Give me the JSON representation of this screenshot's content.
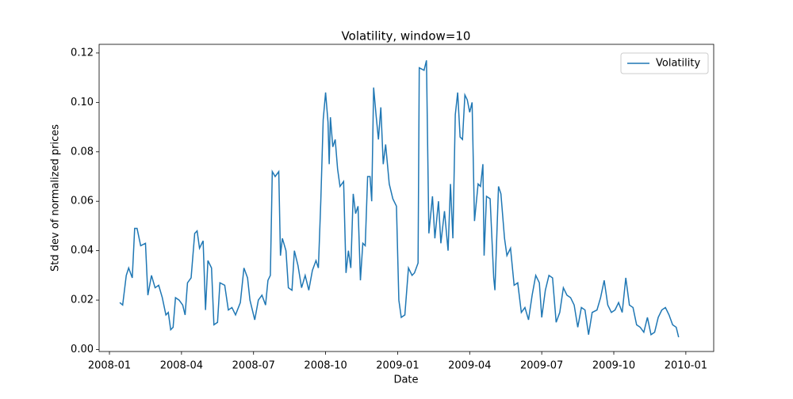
{
  "chart_data": {
    "type": "line",
    "title": "Volatility, window=10",
    "x_label": "Date",
    "y_label": "Std dev of normalized prices",
    "x": [
      0.43,
      0.55,
      0.7,
      0.8,
      0.95,
      1.05,
      1.15,
      1.3,
      1.5,
      1.6,
      1.75,
      1.9,
      2.05,
      2.2,
      2.35,
      2.45,
      2.55,
      2.65,
      2.75,
      2.9,
      3.05,
      3.15,
      3.25,
      3.4,
      3.55,
      3.65,
      3.75,
      3.9,
      4.0,
      4.1,
      4.25,
      4.35,
      4.5,
      4.6,
      4.8,
      4.95,
      5.1,
      5.25,
      5.45,
      5.6,
      5.75,
      5.85,
      6.05,
      6.2,
      6.35,
      6.5,
      6.6,
      6.7,
      6.78,
      6.9,
      7.05,
      7.12,
      7.2,
      7.35,
      7.45,
      7.6,
      7.7,
      7.85,
      8.0,
      8.15,
      8.3,
      8.45,
      8.6,
      8.7,
      8.8,
      8.9,
      9.0,
      9.1,
      9.15,
      9.2,
      9.3,
      9.4,
      9.5,
      9.6,
      9.75,
      9.85,
      9.95,
      10.05,
      10.15,
      10.25,
      10.35,
      10.45,
      10.55,
      10.65,
      10.75,
      10.85,
      10.92,
      11.0,
      11.1,
      11.2,
      11.3,
      11.4,
      11.5,
      11.65,
      11.8,
      11.95,
      12.05,
      12.15,
      12.3,
      12.45,
      12.6,
      12.7,
      12.85,
      12.9,
      13.1,
      13.2,
      13.3,
      13.45,
      13.55,
      13.7,
      13.8,
      13.95,
      14.1,
      14.2,
      14.3,
      14.4,
      14.5,
      14.6,
      14.7,
      14.8,
      14.9,
      15.0,
      15.1,
      15.2,
      15.35,
      15.45,
      15.55,
      15.6,
      15.7,
      15.85,
      16.0,
      16.05,
      16.2,
      16.3,
      16.45,
      16.55,
      16.7,
      16.85,
      17.0,
      17.15,
      17.3,
      17.45,
      17.6,
      17.75,
      17.9,
      18.0,
      18.15,
      18.3,
      18.45,
      18.6,
      18.75,
      18.9,
      19.05,
      19.2,
      19.35,
      19.5,
      19.65,
      19.8,
      19.95,
      20.1,
      20.3,
      20.45,
      20.6,
      20.75,
      20.9,
      21.05,
      21.2,
      21.35,
      21.5,
      21.65,
      21.8,
      21.95,
      22.1,
      22.25,
      22.4,
      22.55,
      22.7,
      22.85,
      23.0,
      23.15,
      23.3,
      23.45,
      23.6,
      23.7
    ],
    "series": [
      {
        "name": "Volatility",
        "color": "#1f77b4",
        "values": [
          0.019,
          0.018,
          0.03,
          0.033,
          0.029,
          0.049,
          0.049,
          0.042,
          0.043,
          0.022,
          0.03,
          0.025,
          0.026,
          0.021,
          0.014,
          0.015,
          0.008,
          0.009,
          0.021,
          0.02,
          0.018,
          0.014,
          0.027,
          0.029,
          0.047,
          0.048,
          0.041,
          0.044,
          0.016,
          0.036,
          0.033,
          0.01,
          0.011,
          0.027,
          0.026,
          0.016,
          0.017,
          0.014,
          0.019,
          0.033,
          0.029,
          0.02,
          0.012,
          0.02,
          0.022,
          0.018,
          0.028,
          0.03,
          0.072,
          0.07,
          0.072,
          0.038,
          0.045,
          0.04,
          0.025,
          0.024,
          0.04,
          0.034,
          0.025,
          0.03,
          0.024,
          0.032,
          0.036,
          0.033,
          0.06,
          0.093,
          0.104,
          0.092,
          0.075,
          0.094,
          0.082,
          0.085,
          0.073,
          0.066,
          0.068,
          0.031,
          0.04,
          0.033,
          0.063,
          0.055,
          0.058,
          0.028,
          0.043,
          0.042,
          0.07,
          0.07,
          0.06,
          0.106,
          0.095,
          0.085,
          0.098,
          0.075,
          0.083,
          0.067,
          0.061,
          0.058,
          0.02,
          0.013,
          0.014,
          0.033,
          0.03,
          0.031,
          0.035,
          0.114,
          0.113,
          0.117,
          0.047,
          0.062,
          0.045,
          0.06,
          0.043,
          0.056,
          0.04,
          0.067,
          0.045,
          0.095,
          0.104,
          0.086,
          0.085,
          0.103,
          0.101,
          0.096,
          0.1,
          0.052,
          0.067,
          0.066,
          0.075,
          0.038,
          0.062,
          0.061,
          0.029,
          0.024,
          0.066,
          0.063,
          0.045,
          0.038,
          0.041,
          0.026,
          0.027,
          0.015,
          0.017,
          0.012,
          0.022,
          0.03,
          0.027,
          0.013,
          0.024,
          0.03,
          0.029,
          0.011,
          0.015,
          0.025,
          0.022,
          0.021,
          0.018,
          0.009,
          0.017,
          0.016,
          0.006,
          0.015,
          0.016,
          0.021,
          0.028,
          0.018,
          0.015,
          0.016,
          0.019,
          0.015,
          0.029,
          0.018,
          0.017,
          0.01,
          0.009,
          0.007,
          0.013,
          0.006,
          0.007,
          0.013,
          0.016,
          0.017,
          0.014,
          0.01,
          0.009,
          0.005
        ]
      }
    ],
    "xlim": [
      -0.43,
      25.16
    ],
    "xticks": [
      {
        "value": 0,
        "label": "2008-01"
      },
      {
        "value": 3,
        "label": "2008-04"
      },
      {
        "value": 6,
        "label": "2008-07"
      },
      {
        "value": 9,
        "label": "2008-10"
      },
      {
        "value": 12,
        "label": "2009-01"
      },
      {
        "value": 15,
        "label": "2009-04"
      },
      {
        "value": 18,
        "label": "2009-07"
      },
      {
        "value": 21,
        "label": "2009-10"
      },
      {
        "value": 24,
        "label": "2010-01"
      }
    ],
    "ylim": [
      -0.0008,
      0.1235
    ],
    "yticks": [
      {
        "value": 0,
        "label": "0.00"
      },
      {
        "value": 0.02,
        "label": "0.02"
      },
      {
        "value": 0.04,
        "label": "0.04"
      },
      {
        "value": 0.06,
        "label": "0.06"
      },
      {
        "value": 0.08,
        "label": "0.08"
      },
      {
        "value": 0.1,
        "label": "0.10"
      },
      {
        "value": 0.12,
        "label": "0.12"
      }
    ],
    "legend": "upper right"
  }
}
